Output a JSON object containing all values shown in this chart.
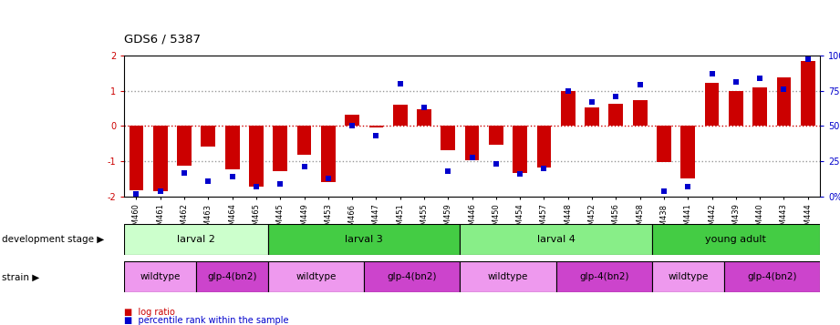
{
  "title": "GDS6 / 5387",
  "samples": [
    "GSM460",
    "GSM461",
    "GSM462",
    "GSM463",
    "GSM464",
    "GSM465",
    "GSM445",
    "GSM449",
    "GSM453",
    "GSM466",
    "GSM447",
    "GSM451",
    "GSM455",
    "GSM459",
    "GSM446",
    "GSM450",
    "GSM454",
    "GSM457",
    "GSM448",
    "GSM452",
    "GSM456",
    "GSM458",
    "GSM438",
    "GSM441",
    "GSM442",
    "GSM439",
    "GSM440",
    "GSM443",
    "GSM444"
  ],
  "log_ratio": [
    -1.82,
    -1.85,
    -1.12,
    -0.58,
    -1.22,
    -1.72,
    -1.28,
    -0.82,
    -1.58,
    0.32,
    -0.04,
    0.6,
    0.48,
    -0.68,
    -0.98,
    -0.52,
    -1.32,
    -1.18,
    1.0,
    0.52,
    0.62,
    0.72,
    -1.02,
    -1.48,
    1.22,
    0.98,
    1.08,
    1.38,
    1.84
  ],
  "percentile": [
    2,
    4,
    17,
    11,
    14,
    7,
    9,
    21,
    13,
    50,
    43,
    80,
    63,
    18,
    28,
    23,
    16,
    20,
    75,
    67,
    71,
    79,
    4,
    7,
    87,
    81,
    84,
    76,
    97
  ],
  "dev_stages": [
    {
      "label": "larval 2",
      "start": 0,
      "end": 6,
      "color": "#ccffcc"
    },
    {
      "label": "larval 3",
      "start": 6,
      "end": 14,
      "color": "#44cc44"
    },
    {
      "label": "larval 4",
      "start": 14,
      "end": 22,
      "color": "#88ee88"
    },
    {
      "label": "young adult",
      "start": 22,
      "end": 29,
      "color": "#44cc44"
    }
  ],
  "strains": [
    {
      "label": "wildtype",
      "start": 0,
      "end": 3,
      "color": "#ee99ee"
    },
    {
      "label": "glp-4(bn2)",
      "start": 3,
      "end": 6,
      "color": "#cc44cc"
    },
    {
      "label": "wildtype",
      "start": 6,
      "end": 10,
      "color": "#ee99ee"
    },
    {
      "label": "glp-4(bn2)",
      "start": 10,
      "end": 14,
      "color": "#cc44cc"
    },
    {
      "label": "wildtype",
      "start": 14,
      "end": 18,
      "color": "#ee99ee"
    },
    {
      "label": "glp-4(bn2)",
      "start": 18,
      "end": 22,
      "color": "#cc44cc"
    },
    {
      "label": "wildtype",
      "start": 22,
      "end": 25,
      "color": "#ee99ee"
    },
    {
      "label": "glp-4(bn2)",
      "start": 25,
      "end": 29,
      "color": "#cc44cc"
    }
  ],
  "ylim": [
    -2,
    2
  ],
  "bar_color": "#cc0000",
  "dot_color": "#0000cc",
  "background_color": "#ffffff",
  "left_tick_labels": [
    "-2",
    "-1",
    "0",
    "1",
    "2"
  ],
  "left_tick_values": [
    -2,
    -1,
    0,
    1,
    2
  ],
  "right_tick_labels": [
    "0%",
    "25",
    "50",
    "75",
    "100%"
  ],
  "right_tick_values": [
    0,
    25,
    50,
    75,
    100
  ],
  "dev_stage_label": "development stage",
  "strain_label": "strain",
  "legend_bar": "log ratio",
  "legend_dot": "percentile rank within the sample",
  "bar_width": 0.6
}
